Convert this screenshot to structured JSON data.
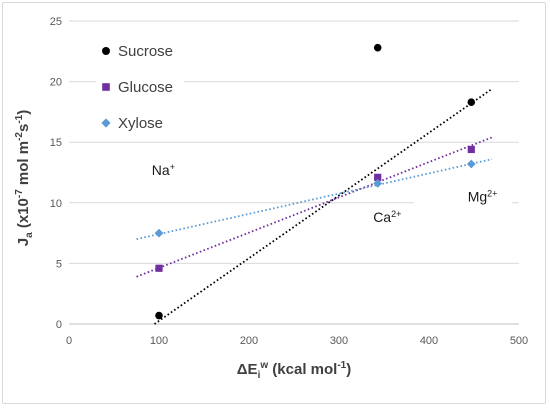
{
  "chart_data": {
    "type": "scatter",
    "xlim": [
      0,
      500
    ],
    "ylim": [
      0,
      25
    ],
    "xticks": [
      0,
      100,
      200,
      300,
      400,
      500
    ],
    "yticks": [
      0,
      5,
      10,
      15,
      20,
      25
    ],
    "xlabel": {
      "main": "ΔE",
      "sub": "i",
      "sup": "w",
      "rest": " (kcal mol",
      "rest_sup": "-1",
      "end": ")"
    },
    "ylabel": {
      "main": "J",
      "sub": "a",
      "rest": " (x10",
      "sup1": "-7",
      "mid": " mol m",
      "sup2": "-2",
      "s": "s",
      "sup3": "-1",
      "end": ")"
    },
    "grid": "horizontal",
    "legend_position": "top-left",
    "series": [
      {
        "name": "Sucrose",
        "marker": "circle",
        "color": "#000000",
        "points": [
          [
            100,
            0.7
          ],
          [
            343,
            22.8
          ],
          [
            447,
            18.3
          ]
        ],
        "trendline": {
          "x": [
            95,
            470
          ],
          "y": [
            0.0,
            19.4
          ],
          "color": "#000000"
        }
      },
      {
        "name": "Glucose",
        "marker": "square",
        "color": "#7030a0",
        "points": [
          [
            100,
            4.6
          ],
          [
            343,
            12.1
          ],
          [
            447,
            14.4
          ]
        ],
        "trendline": {
          "x": [
            75,
            470
          ],
          "y": [
            3.9,
            15.4
          ],
          "color": "#7030a0"
        }
      },
      {
        "name": "Xylose",
        "marker": "diamond",
        "color": "#5b9bd5",
        "points": [
          [
            100,
            7.5
          ],
          [
            343,
            11.6
          ],
          [
            447,
            13.2
          ]
        ],
        "trendline": {
          "x": [
            75,
            470
          ],
          "y": [
            7.0,
            13.6
          ],
          "color": "#5b9bd5"
        }
      }
    ],
    "annotations": [
      {
        "base": "Na",
        "sup": "+",
        "x": 92,
        "y": 12.3
      },
      {
        "base": "Ca",
        "sup": "2+",
        "x": 338,
        "y": 8.4
      },
      {
        "base": "Mg",
        "sup": "2+",
        "x": 443,
        "y": 10.1
      }
    ]
  }
}
